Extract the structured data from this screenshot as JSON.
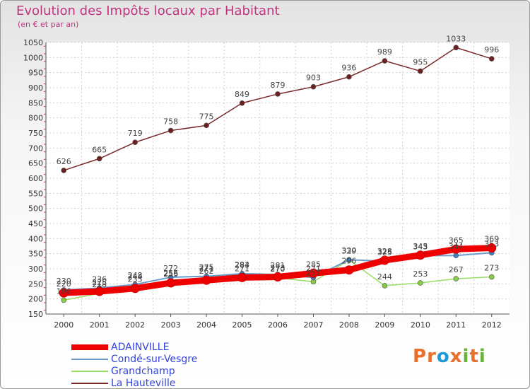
{
  "title": "Evolution des Impôts locaux par Habitant",
  "subtitle": "(en € et par an)",
  "logo": {
    "letters": [
      "P",
      "r",
      "o",
      "x",
      "i",
      "t",
      "i"
    ],
    "colors": [
      "#ea6f2a",
      "#ea6f2a",
      "#1d98d9",
      "#ea6f2a",
      "#6ab23a",
      "#ea6f2a",
      "#6ab23a"
    ]
  },
  "chart_data": {
    "type": "line",
    "title": "Evolution des Impôts locaux par Habitant",
    "subtitle": "(en € et par an)",
    "xlabel": "",
    "ylabel": "",
    "x": [
      "2000",
      "2001",
      "2002",
      "2003",
      "2004",
      "2005",
      "2006",
      "2007",
      "2008",
      "2009",
      "2010",
      "2011",
      "2012"
    ],
    "ylim": [
      150,
      1050
    ],
    "yticks": [
      "150",
      "200",
      "250",
      "300",
      "350",
      "400",
      "450",
      "500",
      "550",
      "600",
      "650",
      "700",
      "750",
      "800",
      "850",
      "900",
      "950",
      "1000",
      "1050"
    ],
    "grid": true,
    "legend_position": "bottom-left",
    "series": [
      {
        "name": "ADAINVILLE",
        "color": "#ee0000",
        "marker": "#ee0000",
        "values": [
          220,
          225,
          235,
          253,
          262,
          271,
          273,
          285,
          296,
          328,
          345,
          365,
          369
        ],
        "labels": [
          "220",
          "225",
          "235",
          "253",
          "262",
          "271",
          "273",
          "285",
          "296",
          "328",
          "345",
          "365",
          "369"
        ]
      },
      {
        "name": "Condé-sur-Vesgre",
        "color": "#6b9ccc",
        "marker": "#3f7ec0",
        "values": [
          230,
          236,
          248,
          272,
          275,
          284,
          281,
          271,
          330,
          325,
          343,
          344,
          353
        ],
        "labels": [
          "230",
          "236",
          "248",
          "272",
          "275",
          "284",
          "281",
          "271",
          "330",
          "325",
          "343",
          "344",
          "353"
        ]
      },
      {
        "name": "Grandchamp",
        "color": "#99dd66",
        "marker": "#88cc44",
        "values": [
          196,
          218,
          244,
          256,
          271,
          283,
          270,
          257,
          329,
          244,
          253,
          267,
          273
        ],
        "labels": [
          "196",
          "218",
          "244",
          "256",
          "271",
          "283",
          "270",
          "257",
          "329",
          "244",
          "253",
          "267",
          "273"
        ]
      },
      {
        "name": "La Hauteville",
        "color": "#7a2a2a",
        "marker": "#6b1f1f",
        "values": [
          626,
          665,
          719,
          758,
          775,
          849,
          879,
          903,
          936,
          989,
          955,
          1033,
          996
        ],
        "labels": [
          "626",
          "665",
          "719",
          "758",
          "775",
          "849",
          "879",
          "903",
          "936",
          "989",
          "955",
          "1033",
          "996"
        ]
      }
    ]
  }
}
